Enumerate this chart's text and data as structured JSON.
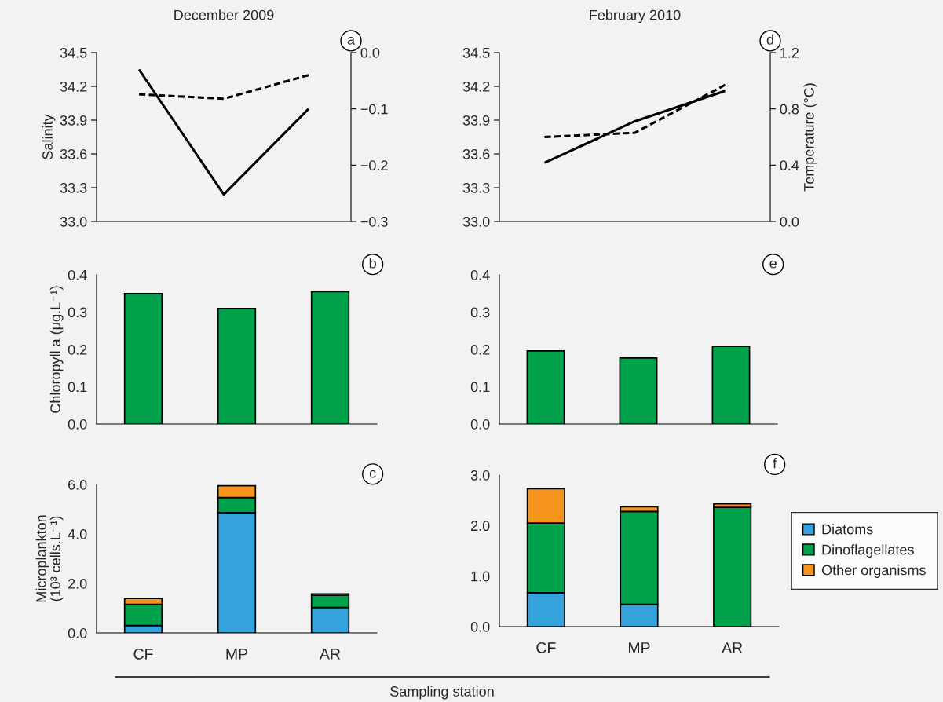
{
  "chart_data": [
    {
      "type": "line",
      "title": "December 2009",
      "ylabel": "Salinity",
      "categories": [
        null,
        null,
        null
      ],
      "tick_labels": "y",
      "legend": false,
      "annotations": [
        "a"
      ],
      "ylim": [
        33.0,
        34.5
      ],
      "yticks": [
        {
          "value": 33.0,
          "label": "33.0"
        },
        33.3,
        33.6,
        33.9,
        34.2,
        34.5
      ],
      "y2lim": [
        -0.3,
        0.0
      ],
      "y2ticks": [
        {
          "value": -0.3,
          "label": "−0.3"
        },
        {
          "value": -0.2,
          "label": "−0.2"
        },
        {
          "value": -0.1,
          "label": "−0.1"
        },
        {
          "value": 0.0,
          "label": "0.0"
        }
      ],
      "series": [
        {
          "color": "#000000",
          "line_style": "solid",
          "values": [
            34.35,
            33.24,
            34.0
          ]
        },
        {
          "color": "#000000",
          "line_style": "dashed",
          "axis": "y2",
          "values": [
            -0.074,
            -0.082,
            -0.04
          ]
        }
      ]
    },
    {
      "type": "line",
      "title": "February 2010",
      "y2label": "Temperature (°C)",
      "categories": [
        null,
        null,
        null
      ],
      "tick_labels": "y",
      "legend": false,
      "annotations": [
        "d"
      ],
      "ylim": [
        33.0,
        34.5
      ],
      "yticks": [
        {
          "value": 33.0,
          "label": "33.0"
        },
        33.3,
        33.6,
        33.9,
        34.2,
        34.5
      ],
      "y2lim": [
        0.0,
        1.2
      ],
      "y2ticks": [
        {
          "value": 0.0,
          "label": "0.0"
        },
        0.4,
        0.8,
        1.2
      ],
      "series": [
        {
          "color": "#000000",
          "line_style": "solid",
          "values": [
            33.52,
            33.89,
            34.16
          ]
        },
        {
          "color": "#000000",
          "line_style": "dashed",
          "axis": "y2",
          "values": [
            0.6,
            0.63,
            0.97
          ]
        }
      ]
    },
    {
      "type": "bar",
      "ylabel": "Chloropyll a (μg.L⁻¹)",
      "categories": [
        null,
        null,
        null
      ],
      "tick_labels": "y",
      "legend": false,
      "annotations": [
        "b"
      ],
      "ylim": [
        0.0,
        0.4
      ],
      "yticks": [
        {
          "value": 0.0,
          "label": "0.0"
        },
        0.1,
        0.2,
        0.3,
        0.4
      ],
      "series": [
        {
          "color": "#00a14b",
          "values": [
            0.35,
            0.31,
            0.355
          ]
        }
      ]
    },
    {
      "type": "bar",
      "categories": [
        null,
        null,
        null
      ],
      "tick_labels": "y",
      "legend": false,
      "annotations": [
        "e"
      ],
      "ylim": [
        0.0,
        0.4
      ],
      "yticks": [
        {
          "value": 0.0,
          "label": "0.0"
        },
        0.1,
        0.2,
        0.3,
        0.4
      ],
      "series": [
        {
          "color": "#00a14b",
          "values": [
            0.196,
            0.177,
            0.208
          ]
        }
      ]
    },
    {
      "type": "bar",
      "stacked": true,
      "ylabel": "Microplankton\n(10³ cells.L⁻¹)",
      "xlabel": "Sampling station",
      "categories": [
        "CF",
        "MP",
        "AR"
      ],
      "legend": false,
      "annotations": [
        "c"
      ],
      "ylim": [
        0.0,
        6.0
      ],
      "yticks": [
        {
          "value": 0.0,
          "label": "0.0"
        },
        {
          "value": 2.0,
          "label": "2.0"
        },
        {
          "value": 4.0,
          "label": "4.0"
        },
        {
          "value": 6.0,
          "label": "6.0"
        }
      ],
      "series": [
        {
          "color": "#36a2dc",
          "values": [
            0.3,
            4.86,
            1.03
          ]
        },
        {
          "color": "#00a14b",
          "values": [
            0.86,
            0.61,
            0.49
          ]
        },
        {
          "color": "#f7941d",
          "values": [
            0.23,
            0.48,
            0.06
          ]
        }
      ]
    },
    {
      "type": "bar",
      "stacked": true,
      "categories": [
        "CF",
        "MP",
        "AR"
      ],
      "legend": "right",
      "annotations": [
        "f"
      ],
      "ylim": [
        0.0,
        3.0
      ],
      "yticks": [
        {
          "value": 0.0,
          "label": "0.0"
        },
        {
          "value": 1.0,
          "label": "1.0"
        },
        {
          "value": 2.0,
          "label": "2.0"
        },
        {
          "value": 3.0,
          "label": "3.0"
        }
      ],
      "series": [
        {
          "name": "Diatoms",
          "color": "#36a2dc",
          "values": [
            0.67,
            0.44,
            0.0
          ]
        },
        {
          "name": "Dinoflagellates",
          "color": "#00a14b",
          "values": [
            1.38,
            1.84,
            2.36
          ]
        },
        {
          "name": "Other organisms",
          "color": "#f7941d",
          "values": [
            0.68,
            0.09,
            0.07
          ]
        }
      ]
    }
  ]
}
